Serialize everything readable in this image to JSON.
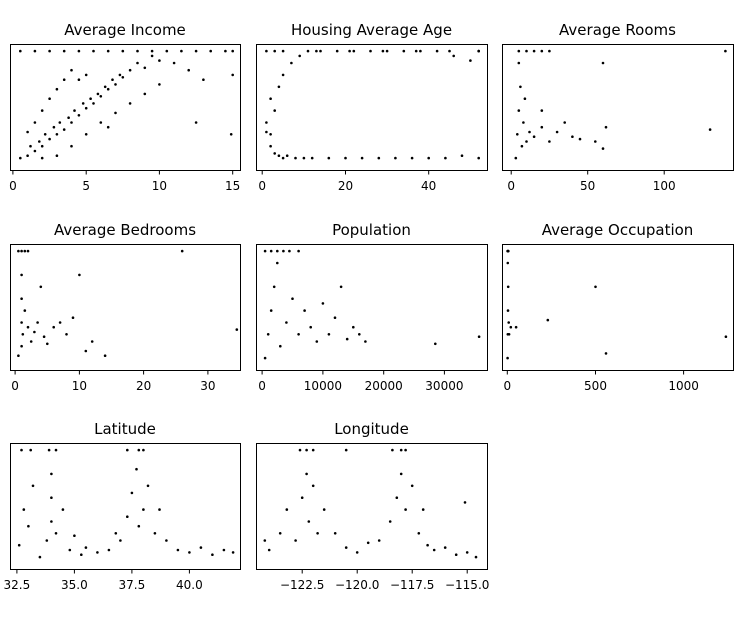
{
  "figure_title": "",
  "chart_data": [
    {
      "type": "scatter",
      "title": "Average Income",
      "xlabel": "",
      "ylabel": "",
      "xlim": [
        -0.2,
        15.5
      ],
      "ylim": [
        0,
        5.3
      ],
      "xticks": [
        0,
        5,
        10,
        15
      ],
      "xtick_labels": [
        "0",
        "5",
        "10",
        "15"
      ],
      "y_ticks_shown": false,
      "points": [
        [
          0.5,
          0.5
        ],
        [
          1,
          0.6
        ],
        [
          1.2,
          1
        ],
        [
          1.5,
          0.8
        ],
        [
          1.8,
          1.2
        ],
        [
          2,
          1
        ],
        [
          2.2,
          1.5
        ],
        [
          2.5,
          1.3
        ],
        [
          2.8,
          1.8
        ],
        [
          3,
          1.5
        ],
        [
          3.2,
          2
        ],
        [
          3.5,
          1.7
        ],
        [
          3.8,
          2.2
        ],
        [
          4,
          2
        ],
        [
          4.2,
          2.5
        ],
        [
          4.5,
          2.3
        ],
        [
          4.8,
          2.8
        ],
        [
          5,
          2.6
        ],
        [
          5.3,
          3
        ],
        [
          5.5,
          2.8
        ],
        [
          5.8,
          3.2
        ],
        [
          6,
          3.1
        ],
        [
          6.3,
          3.5
        ],
        [
          6.5,
          3.4
        ],
        [
          6.8,
          3.8
        ],
        [
          7,
          3.6
        ],
        [
          7.3,
          4
        ],
        [
          7.5,
          3.9
        ],
        [
          8,
          4.2
        ],
        [
          8.5,
          4.5
        ],
        [
          9,
          4.3
        ],
        [
          9.5,
          4.8
        ],
        [
          10,
          4.6
        ],
        [
          2,
          2.5
        ],
        [
          2.5,
          3
        ],
        [
          3,
          3.4
        ],
        [
          3.5,
          3.8
        ],
        [
          4,
          4.2
        ],
        [
          1.5,
          2
        ],
        [
          4.5,
          3.8
        ],
        [
          5,
          4
        ],
        [
          3,
          0.6
        ],
        [
          4,
          1
        ],
        [
          5,
          1.5
        ],
        [
          6,
          2
        ],
        [
          7,
          2.4
        ],
        [
          8,
          2.8
        ],
        [
          9,
          3.2
        ],
        [
          10,
          3.6
        ],
        [
          11,
          4.5
        ],
        [
          12,
          4.2
        ],
        [
          13,
          3.8
        ],
        [
          14.9,
          1.5
        ],
        [
          15,
          4
        ],
        [
          12.5,
          2
        ],
        [
          1,
          1.6
        ],
        [
          2,
          0.5
        ],
        [
          6.5,
          1.8
        ]
      ],
      "capped_points": [
        [
          0.5,
          5.0
        ],
        [
          1.5,
          5.0
        ],
        [
          2.5,
          5.0
        ],
        [
          3.5,
          5.0
        ],
        [
          4.5,
          5.0
        ],
        [
          5.5,
          5.0
        ],
        [
          6.5,
          5.0
        ],
        [
          7.5,
          5.0
        ],
        [
          8.5,
          5.0
        ],
        [
          9.5,
          5.0
        ],
        [
          10.5,
          5.0
        ],
        [
          11.5,
          5.0
        ],
        [
          12.5,
          5.0
        ],
        [
          13.5,
          5.0
        ],
        [
          14.5,
          5.0
        ],
        [
          15,
          5.0
        ]
      ]
    },
    {
      "type": "scatter",
      "title": "Housing Average Age",
      "xlabel": "",
      "ylabel": "",
      "xlim": [
        -1.5,
        54
      ],
      "ylim": [
        0,
        5.3
      ],
      "xticks": [
        0,
        20,
        40
      ],
      "xtick_labels": [
        "0",
        "20",
        "40"
      ],
      "y_ticks_shown": false,
      "points": [
        [
          1,
          1.6
        ],
        [
          1,
          2.0
        ],
        [
          2,
          1.0
        ],
        [
          2,
          1.5
        ],
        [
          2,
          3.0
        ],
        [
          3,
          0.7
        ],
        [
          3,
          2.5
        ],
        [
          4,
          0.6
        ],
        [
          4,
          3.5
        ],
        [
          5,
          0.5
        ],
        [
          5,
          4.0
        ],
        [
          6,
          0.6
        ],
        [
          7,
          4.5
        ],
        [
          8,
          0.5
        ],
        [
          9,
          4.8
        ],
        [
          10,
          0.5
        ],
        [
          11,
          5.0
        ],
        [
          12,
          0.5
        ],
        [
          14,
          5.0
        ],
        [
          16,
          0.5
        ],
        [
          18,
          5.0
        ],
        [
          20,
          0.5
        ],
        [
          22,
          5.0
        ],
        [
          24,
          0.5
        ],
        [
          26,
          5.0
        ],
        [
          28,
          0.5
        ],
        [
          30,
          5.0
        ],
        [
          32,
          0.5
        ],
        [
          34,
          5.0
        ],
        [
          36,
          0.5
        ],
        [
          38,
          5.0
        ],
        [
          40,
          0.5
        ],
        [
          42,
          5.0
        ],
        [
          44,
          0.5
        ],
        [
          46,
          4.8
        ],
        [
          48,
          0.6
        ],
        [
          50,
          4.6
        ],
        [
          52,
          0.5
        ],
        [
          52,
          5.0
        ]
      ],
      "capped_points": [
        [
          1,
          5.0
        ],
        [
          3,
          5.0
        ],
        [
          5,
          5.0
        ],
        [
          13,
          5.0
        ],
        [
          21,
          5.0
        ],
        [
          29,
          5.0
        ],
        [
          37,
          5.0
        ],
        [
          45,
          5.0
        ],
        [
          52,
          5.0
        ]
      ]
    },
    {
      "type": "scatter",
      "title": "Average Rooms",
      "xlabel": "",
      "ylabel": "",
      "xlim": [
        -6,
        145
      ],
      "ylim": [
        0,
        5.3
      ],
      "xticks": [
        0,
        50,
        100
      ],
      "xtick_labels": [
        "0",
        "50",
        "100"
      ],
      "y_ticks_shown": false,
      "points": [
        [
          3,
          0.5
        ],
        [
          4,
          1.5
        ],
        [
          5,
          2.5
        ],
        [
          6,
          3.5
        ],
        [
          5,
          4.5
        ],
        [
          7,
          1
        ],
        [
          8,
          2
        ],
        [
          9,
          3
        ],
        [
          10,
          1.2
        ],
        [
          12,
          1.6
        ],
        [
          15,
          1.4
        ],
        [
          20,
          1.8
        ],
        [
          25,
          1.2
        ],
        [
          30,
          1.6
        ],
        [
          35,
          2
        ],
        [
          40,
          1.4
        ],
        [
          45,
          1.3
        ],
        [
          55,
          1.2
        ],
        [
          60,
          0.9
        ],
        [
          62,
          1.8
        ],
        [
          60,
          4.5
        ],
        [
          130,
          1.7
        ],
        [
          140,
          5.0
        ],
        [
          20,
          2.5
        ]
      ],
      "capped_points": [
        [
          5,
          5.0
        ],
        [
          10,
          5.0
        ],
        [
          15,
          5.0
        ],
        [
          20,
          5.0
        ],
        [
          25,
          5.0
        ]
      ]
    },
    {
      "type": "scatter",
      "title": "Average Bedrooms",
      "xlabel": "",
      "ylabel": "",
      "xlim": [
        -0.8,
        35
      ],
      "ylim": [
        0,
        5.3
      ],
      "xticks": [
        0,
        10,
        20,
        30
      ],
      "xtick_labels": [
        "0",
        "10",
        "20",
        "30"
      ],
      "y_ticks_shown": false,
      "points": [
        [
          0.5,
          0.6
        ],
        [
          1,
          1
        ],
        [
          1,
          2
        ],
        [
          1,
          3
        ],
        [
          1,
          4
        ],
        [
          1.2,
          1.5
        ],
        [
          1.5,
          2.5
        ],
        [
          2,
          1.8
        ],
        [
          2.5,
          1.2
        ],
        [
          3,
          1.6
        ],
        [
          3.5,
          2
        ],
        [
          4,
          3.5
        ],
        [
          4.5,
          1.4
        ],
        [
          5,
          1.1
        ],
        [
          6,
          1.8
        ],
        [
          7,
          2
        ],
        [
          8,
          1.5
        ],
        [
          9,
          2.2
        ],
        [
          10,
          4
        ],
        [
          11,
          0.8
        ],
        [
          12,
          1.2
        ],
        [
          14,
          0.6
        ],
        [
          26,
          5.0
        ],
        [
          34.5,
          1.7
        ]
      ],
      "capped_points": [
        [
          0.5,
          5.0
        ],
        [
          1,
          5.0
        ],
        [
          1.5,
          5.0
        ],
        [
          2,
          5.0
        ]
      ]
    },
    {
      "type": "scatter",
      "title": "Population",
      "xlabel": "",
      "ylabel": "",
      "xlim": [
        -1000,
        37000
      ],
      "ylim": [
        0,
        5.3
      ],
      "xticks": [
        0,
        10000,
        20000,
        30000
      ],
      "xtick_labels": [
        "0",
        "10000",
        "20000",
        "30000"
      ],
      "y_ticks_shown": false,
      "points": [
        [
          500,
          0.5
        ],
        [
          1000,
          1.5
        ],
        [
          1500,
          2.5
        ],
        [
          2000,
          3.5
        ],
        [
          2500,
          4.5
        ],
        [
          3000,
          1
        ],
        [
          4000,
          2
        ],
        [
          5000,
          3
        ],
        [
          6000,
          1.5
        ],
        [
          7000,
          2.5
        ],
        [
          8000,
          1.8
        ],
        [
          9000,
          1.2
        ],
        [
          10000,
          2.8
        ],
        [
          11000,
          1.5
        ],
        [
          12000,
          2.2
        ],
        [
          13000,
          3.5
        ],
        [
          14000,
          1.3
        ],
        [
          15000,
          1.8
        ],
        [
          16000,
          1.5
        ],
        [
          17000,
          1.2
        ],
        [
          28500,
          1.1
        ],
        [
          35700,
          1.4
        ]
      ],
      "capped_points": [
        [
          500,
          5.0
        ],
        [
          1500,
          5.0
        ],
        [
          2500,
          5.0
        ],
        [
          3500,
          5.0
        ],
        [
          4500,
          5.0
        ],
        [
          6000,
          5.0
        ]
      ]
    },
    {
      "type": "scatter",
      "title": "Average Occupation",
      "xlabel": "",
      "ylabel": "",
      "xlim": [
        -30,
        1280
      ],
      "ylim": [
        0,
        5.3
      ],
      "xticks": [
        0,
        500,
        1000
      ],
      "xtick_labels": [
        "0",
        "500",
        "1000"
      ],
      "y_ticks_shown": false,
      "points": [
        [
          2,
          0.5
        ],
        [
          3,
          1.5
        ],
        [
          4,
          2.5
        ],
        [
          5,
          3.5
        ],
        [
          3,
          4.5
        ],
        [
          8,
          2
        ],
        [
          10,
          1.5
        ],
        [
          20,
          1.8
        ],
        [
          50,
          1.8
        ],
        [
          230,
          2.1
        ],
        [
          500,
          3.5
        ],
        [
          560,
          0.7
        ],
        [
          1240,
          1.4
        ]
      ],
      "capped_points": [
        [
          2,
          5.0
        ],
        [
          4,
          5.0
        ],
        [
          6,
          5.0
        ]
      ]
    },
    {
      "type": "scatter",
      "title": "Latitude",
      "xlabel": "",
      "ylabel": "",
      "xlim": [
        32.2,
        42.2
      ],
      "ylim": [
        0,
        5.3
      ],
      "xticks": [
        32.5,
        35.0,
        37.5,
        40.0
      ],
      "xtick_labels": [
        "32.5",
        "35.0",
        "37.5",
        "40.0"
      ],
      "y_ticks_shown": false,
      "points": [
        [
          32.6,
          1
        ],
        [
          32.8,
          2.5
        ],
        [
          33,
          1.8
        ],
        [
          33.2,
          3.5
        ],
        [
          33.5,
          0.5
        ],
        [
          33.8,
          1.2
        ],
        [
          34,
          2
        ],
        [
          34,
          3
        ],
        [
          34,
          4
        ],
        [
          34.2,
          1.5
        ],
        [
          34.5,
          2.5
        ],
        [
          34.8,
          0.8
        ],
        [
          35,
          1.4
        ],
        [
          35.3,
          0.6
        ],
        [
          35.5,
          0.9
        ],
        [
          36,
          0.7
        ],
        [
          36.5,
          0.8
        ],
        [
          36.8,
          1.5
        ],
        [
          37,
          1.2
        ],
        [
          37.3,
          2.2
        ],
        [
          37.5,
          3.2
        ],
        [
          37.7,
          4.2
        ],
        [
          37.8,
          1.8
        ],
        [
          38,
          2.5
        ],
        [
          38.2,
          3.5
        ],
        [
          38.5,
          1.5
        ],
        [
          38.7,
          2.5
        ],
        [
          39,
          1.2
        ],
        [
          39.5,
          0.8
        ],
        [
          40,
          0.7
        ],
        [
          40.5,
          0.9
        ],
        [
          41,
          0.6
        ],
        [
          41.5,
          0.8
        ],
        [
          41.9,
          0.7
        ]
      ],
      "capped_points": [
        [
          32.7,
          5.0
        ],
        [
          33.1,
          5.0
        ],
        [
          33.9,
          5.0
        ],
        [
          34.2,
          5.0
        ],
        [
          37.3,
          5.0
        ],
        [
          37.8,
          5.0
        ],
        [
          38.0,
          5.0
        ]
      ]
    },
    {
      "type": "scatter",
      "title": "Longitude",
      "xlabel": "",
      "ylabel": "",
      "xlim": [
        -124.6,
        -114.1
      ],
      "ylim": [
        0,
        5.3
      ],
      "xticks": [
        -122.5,
        -120.0,
        -117.5,
        -115.0
      ],
      "xtick_labels": [
        "−122.5",
        "−120.0",
        "−117.5",
        "−115.0"
      ],
      "y_ticks_shown": false,
      "points": [
        [
          -124.2,
          1.2
        ],
        [
          -124,
          0.8
        ],
        [
          -123.5,
          1.5
        ],
        [
          -123.2,
          2.5
        ],
        [
          -122.8,
          1.2
        ],
        [
          -122.5,
          3
        ],
        [
          -122.3,
          4
        ],
        [
          -122.2,
          2
        ],
        [
          -122,
          3.5
        ],
        [
          -121.8,
          1.5
        ],
        [
          -121.5,
          2.5
        ],
        [
          -121,
          1.5
        ],
        [
          -120.5,
          0.9
        ],
        [
          -120,
          0.7
        ],
        [
          -119.5,
          1.1
        ],
        [
          -119,
          1.2
        ],
        [
          -118.5,
          2
        ],
        [
          -118.2,
          3
        ],
        [
          -118,
          4
        ],
        [
          -117.8,
          2.5
        ],
        [
          -117.5,
          3.5
        ],
        [
          -117.2,
          1.5
        ],
        [
          -117,
          2.5
        ],
        [
          -116.8,
          1
        ],
        [
          -116.5,
          0.8
        ],
        [
          -116,
          0.9
        ],
        [
          -115.5,
          0.6
        ],
        [
          -115,
          0.7
        ],
        [
          -115.1,
          2.8
        ],
        [
          -114.6,
          0.5
        ]
      ],
      "capped_points": [
        [
          -122.6,
          5.0
        ],
        [
          -122.3,
          5.0
        ],
        [
          -122.0,
          5.0
        ],
        [
          -120.5,
          5.0
        ],
        [
          -118.4,
          5.0
        ],
        [
          -118.0,
          5.0
        ],
        [
          -117.8,
          5.0
        ]
      ]
    }
  ]
}
